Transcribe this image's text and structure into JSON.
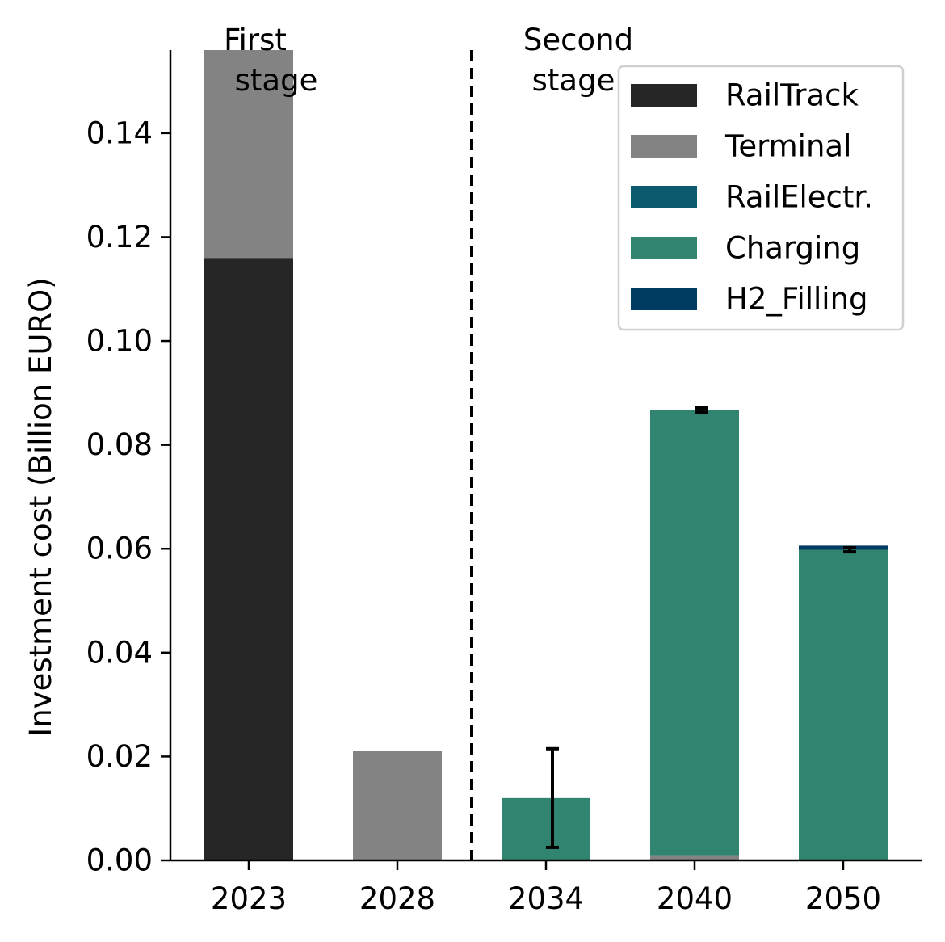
{
  "chart_data": {
    "type": "bar",
    "stacked": true,
    "categories": [
      "2023",
      "2028",
      "2034",
      "2040",
      "2050"
    ],
    "series": [
      {
        "name": "RailTrack",
        "color": "#262626",
        "values": [
          0.116,
          0.0,
          0.0,
          0.0,
          0.0
        ]
      },
      {
        "name": "Terminal",
        "color": "#838383",
        "values": [
          0.04,
          0.021,
          0.0,
          0.001,
          0.0
        ]
      },
      {
        "name": "RailElectr.",
        "color": "#0b5a70",
        "values": [
          0.0,
          0.0,
          0.0,
          0.0,
          0.0
        ]
      },
      {
        "name": "Charging",
        "color": "#318570",
        "values": [
          0.0,
          0.0,
          0.012,
          0.0857,
          0.0598
        ]
      },
      {
        "name": "H2_Filling",
        "color": "#003b62",
        "values": [
          0.0,
          0.0,
          0.0,
          0.0,
          0.0008
        ]
      }
    ],
    "error_bars": [
      {
        "category": "2034",
        "center": 0.012,
        "low": 0.0025,
        "high": 0.0215
      },
      {
        "category": "2040",
        "center": 0.0867,
        "low": 0.0863,
        "high": 0.0871
      },
      {
        "category": "2050",
        "center": 0.0598,
        "low": 0.0594,
        "high": 0.0602
      }
    ],
    "ylabel": "Investment cost (Billion EURO)",
    "xlabel": "",
    "ylim": [
      0,
      0.156
    ],
    "yticks": [
      "0.00",
      "0.02",
      "0.04",
      "0.06",
      "0.08",
      "0.10",
      "0.12",
      "0.14"
    ],
    "stage_divider_after_category": "2028",
    "annotations": {
      "first_stage": [
        "First",
        "stage"
      ],
      "second_stage": [
        "Second",
        "stage"
      ]
    },
    "grid": false,
    "legend_position": "top-right"
  }
}
